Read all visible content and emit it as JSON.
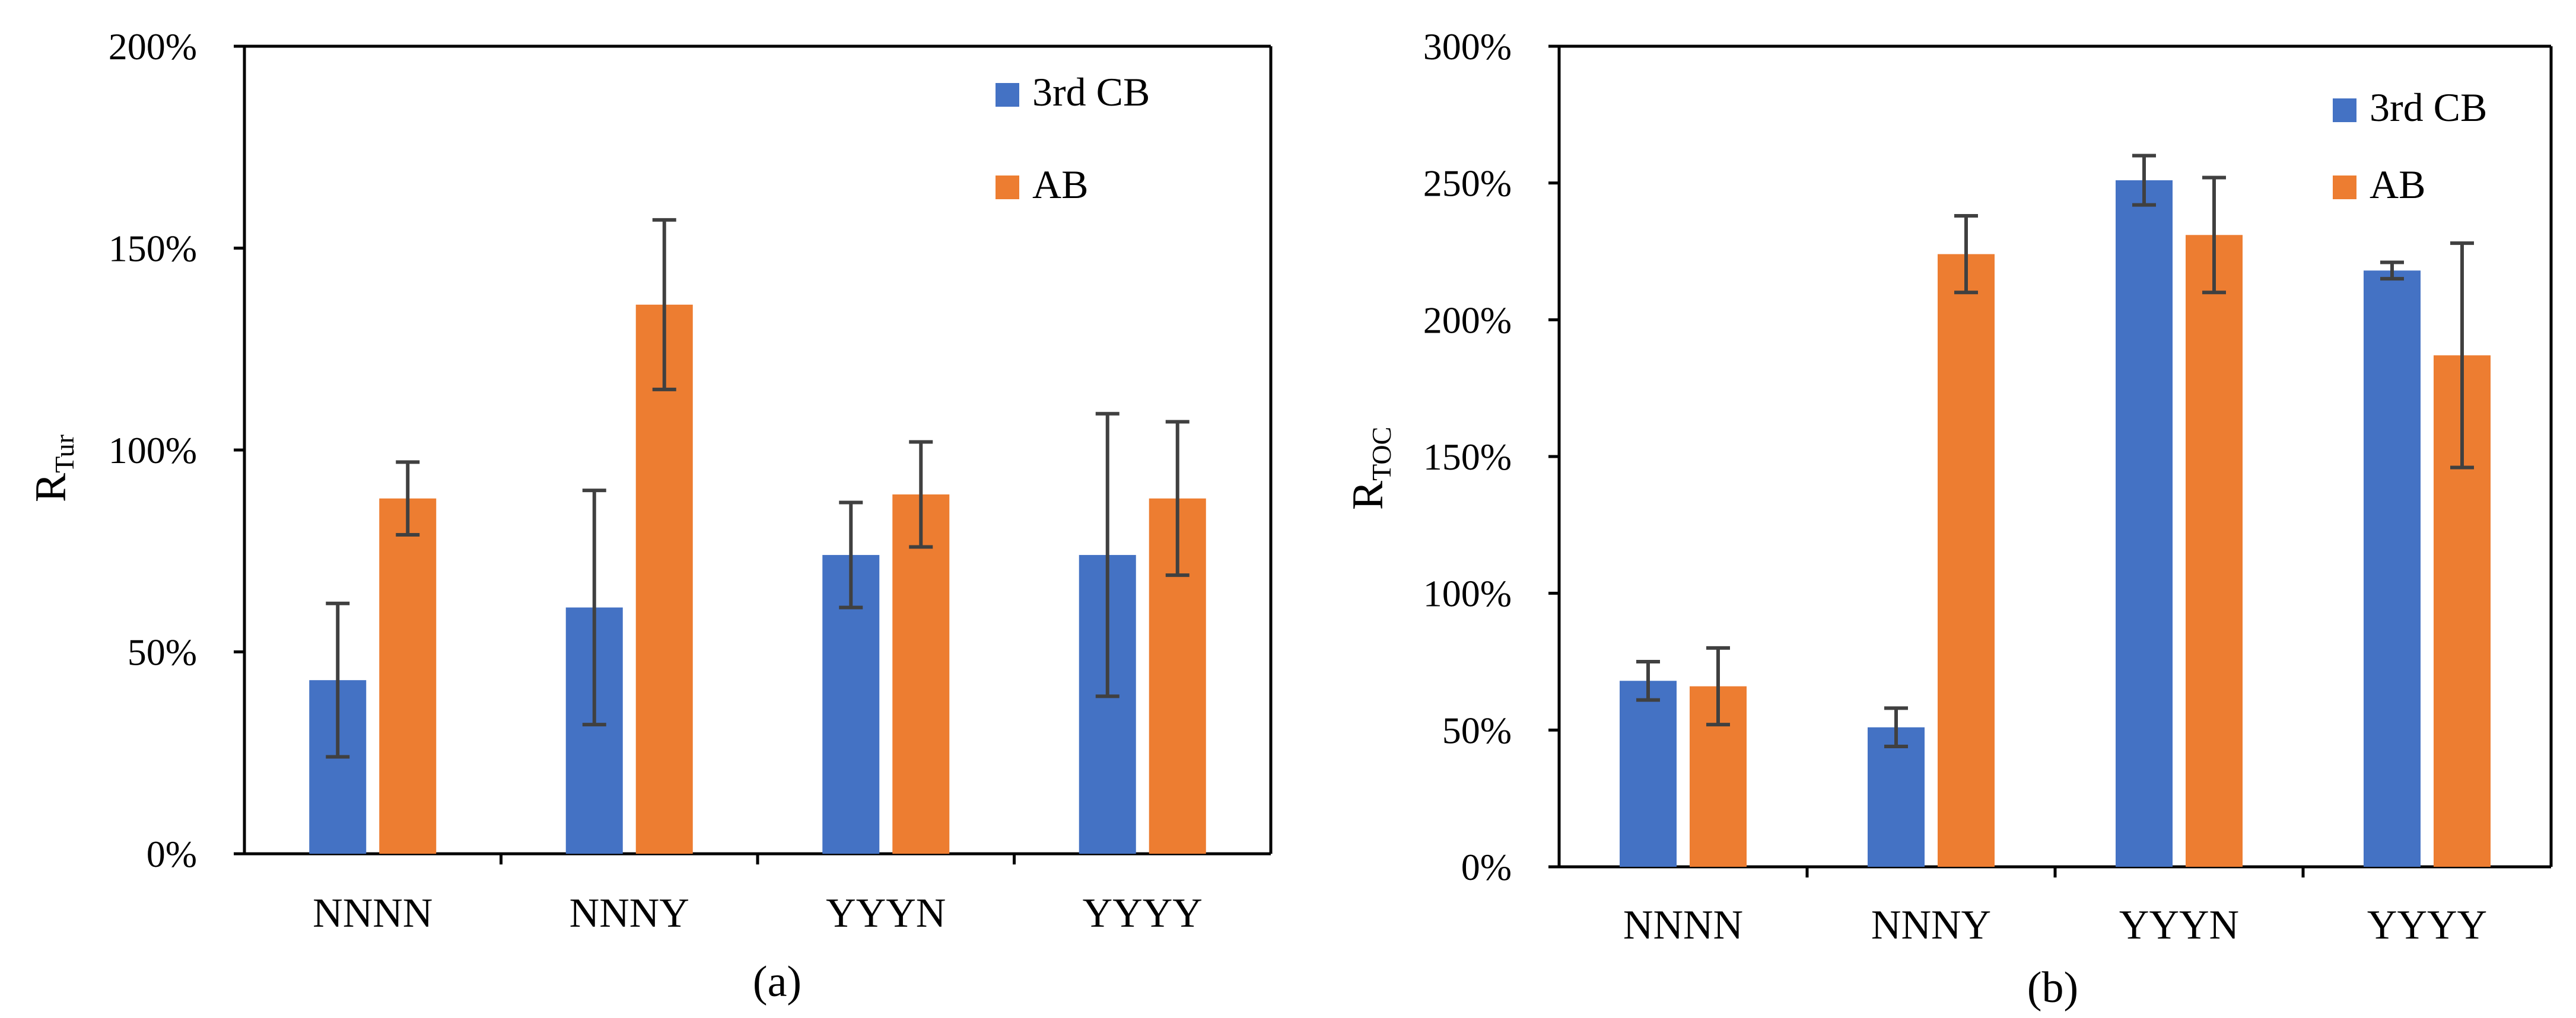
{
  "colors": {
    "series_3rd_cb": "#4472C4",
    "series_ab": "#ED7D31",
    "error_bar": "#404040",
    "axis": "#000000"
  },
  "chart_data": [
    {
      "panel": "a",
      "type": "bar",
      "caption": "(a)",
      "ylabel": "R",
      "ylabel_sub": "Tur",
      "xlabel": "",
      "categories": [
        "NNNN",
        "NNNY",
        "YYYN",
        "YYYY"
      ],
      "ylim": [
        0,
        200
      ],
      "yticks": [
        0,
        50,
        100,
        150,
        200
      ],
      "ytick_labels": [
        "0%",
        "50%",
        "100%",
        "150%",
        "200%"
      ],
      "grid": false,
      "legend_position": "top-right",
      "series": [
        {
          "name": "3rd CB",
          "values": [
            43,
            61,
            74,
            74
          ],
          "errors": [
            19,
            29,
            13,
            35
          ]
        },
        {
          "name": "AB",
          "values": [
            88,
            136,
            89,
            88
          ],
          "errors": [
            9,
            21,
            13,
            19
          ]
        }
      ]
    },
    {
      "panel": "b",
      "type": "bar",
      "caption": "(b)",
      "ylabel": "R",
      "ylabel_sub": "TOC",
      "xlabel": "",
      "categories": [
        "NNNN",
        "NNNY",
        "YYYN",
        "YYYY"
      ],
      "ylim": [
        0,
        300
      ],
      "yticks": [
        0,
        50,
        100,
        150,
        200,
        250,
        300
      ],
      "ytick_labels": [
        "0%",
        "50%",
        "100%",
        "150%",
        "200%",
        "250%",
        "300%"
      ],
      "grid": false,
      "legend_position": "top-right",
      "series": [
        {
          "name": "3rd CB",
          "values": [
            68,
            51,
            251,
            218
          ],
          "errors": [
            7,
            7,
            9,
            3
          ]
        },
        {
          "name": "AB",
          "values": [
            66,
            224,
            231,
            187
          ],
          "errors": [
            14,
            14,
            21,
            41
          ]
        }
      ]
    }
  ]
}
